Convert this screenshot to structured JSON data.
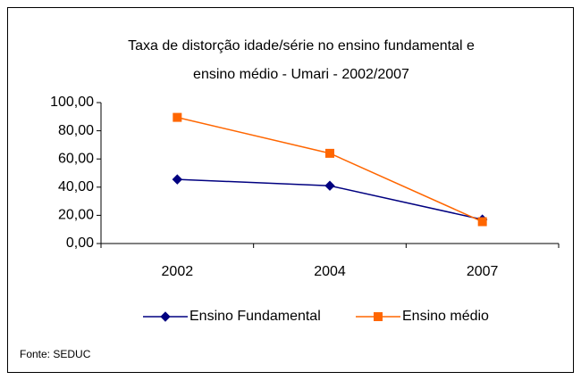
{
  "chart_data": {
    "type": "line",
    "title": [
      "Taxa de distorção idade/série no ensino fundamental e",
      "ensino médio - Umari -  2002/2007"
    ],
    "categories": [
      "2002",
      "2004",
      "2007"
    ],
    "series": [
      {
        "name": "Ensino Fundamental",
        "color": "#000080",
        "marker": "diamond",
        "values": [
          45.5,
          41,
          17
        ]
      },
      {
        "name": "Ensino médio",
        "color": "#ff6600",
        "marker": "square",
        "values": [
          89.5,
          64,
          15.5
        ]
      }
    ],
    "ylim": [
      0,
      100
    ],
    "yticks": [
      {
        "value": 0,
        "label": "0,00"
      },
      {
        "value": 20,
        "label": "20,00"
      },
      {
        "value": 40,
        "label": "40,00"
      },
      {
        "value": 60,
        "label": "60,00"
      },
      {
        "value": 80,
        "label": "80,00"
      },
      {
        "value": 100,
        "label": "100,00"
      }
    ],
    "grid": false,
    "legend": "bottom",
    "source": "Fonte: SEDUC"
  }
}
